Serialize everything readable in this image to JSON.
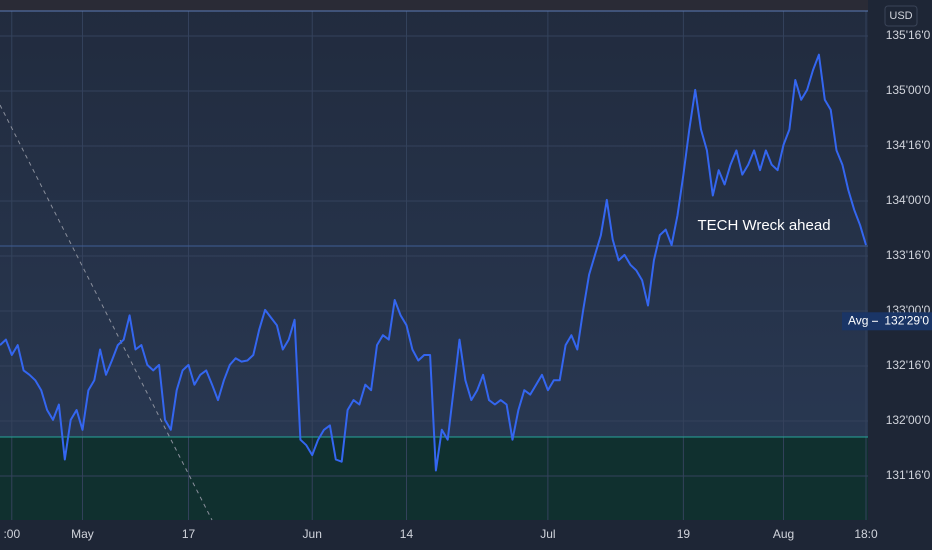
{
  "chart_data": {
    "type": "line",
    "currency": "USD",
    "annotation": "TECH Wreck ahead",
    "color": "#3466f0",
    "grid": true,
    "ylim": [
      131.1,
      135.827
    ],
    "yticks": [
      {
        "value": 131.5,
        "label": "131'16'0"
      },
      {
        "value": 132,
        "label": "132'00'0"
      },
      {
        "value": 132.5,
        "label": "132'16'0"
      },
      {
        "value": 133,
        "label": "133'00'0"
      },
      {
        "value": 133.5,
        "label": "133'16'0"
      },
      {
        "value": 134,
        "label": "134'00'0"
      },
      {
        "value": 134.5,
        "label": "134'16'0"
      },
      {
        "value": 135,
        "label": "135'00'0"
      },
      {
        "value": 135.5,
        "label": "135'16'0"
      }
    ],
    "avg_label": "Avg",
    "avg": {
      "value": 132.90625,
      "label": "132'29'0"
    },
    "categories": [
      null,
      null,
      ":00",
      null,
      null,
      null,
      null,
      null,
      null,
      null,
      null,
      null,
      null,
      null,
      "May",
      null,
      null,
      null,
      null,
      null,
      null,
      null,
      null,
      null,
      null,
      null,
      null,
      null,
      null,
      null,
      null,
      null,
      "17",
      null,
      null,
      null,
      null,
      null,
      null,
      null,
      null,
      null,
      null,
      null,
      null,
      null,
      null,
      null,
      null,
      null,
      null,
      null,
      null,
      "Jun",
      null,
      null,
      null,
      null,
      null,
      null,
      null,
      null,
      null,
      null,
      null,
      null,
      null,
      null,
      null,
      "14",
      null,
      null,
      null,
      null,
      null,
      null,
      null,
      null,
      null,
      null,
      null,
      null,
      null,
      null,
      null,
      null,
      null,
      null,
      null,
      null,
      null,
      null,
      null,
      "Jul",
      null,
      null,
      null,
      null,
      null,
      null,
      null,
      null,
      null,
      null,
      null,
      null,
      null,
      null,
      null,
      null,
      null,
      null,
      null,
      null,
      null,
      null,
      "19",
      null,
      null,
      null,
      null,
      null,
      null,
      null,
      null,
      null,
      null,
      null,
      null,
      null,
      null,
      null,
      null,
      "Aug",
      null,
      null,
      null,
      null,
      null,
      null,
      null,
      null,
      null,
      null,
      null,
      null,
      null,
      "18:0"
    ],
    "values": [
      132.69,
      132.74,
      132.6,
      132.69,
      132.46,
      132.42,
      132.37,
      132.28,
      132.1,
      132.01,
      132.15,
      131.65,
      132.01,
      132.1,
      131.92,
      132.28,
      132.37,
      132.65,
      132.42,
      132.55,
      132.69,
      132.74,
      132.96,
      132.65,
      132.69,
      132.51,
      132.46,
      132.51,
      132.01,
      131.92,
      132.28,
      132.46,
      132.51,
      132.33,
      132.42,
      132.46,
      132.33,
      132.19,
      132.37,
      132.51,
      132.57,
      132.54,
      132.55,
      132.6,
      132.83,
      133.01,
      132.94,
      132.87,
      132.65,
      132.74,
      132.92,
      131.83,
      131.78,
      131.69,
      131.83,
      131.92,
      131.96,
      131.65,
      131.63,
      132.1,
      132.19,
      132.15,
      132.33,
      132.28,
      132.69,
      132.78,
      132.74,
      133.1,
      132.96,
      132.87,
      132.65,
      132.55,
      132.6,
      132.6,
      131.55,
      131.92,
      131.83,
      132.28,
      132.74,
      132.37,
      132.19,
      132.28,
      132.42,
      132.19,
      132.15,
      132.19,
      132.15,
      131.83,
      132.1,
      132.28,
      132.24,
      132.33,
      132.42,
      132.28,
      132.37,
      132.37,
      132.69,
      132.78,
      132.65,
      133.01,
      133.33,
      133.51,
      133.69,
      134.01,
      133.65,
      133.46,
      133.51,
      133.42,
      133.37,
      133.28,
      133.05,
      133.46,
      133.69,
      133.74,
      133.6,
      133.87,
      134.24,
      134.65,
      135.01,
      134.65,
      134.46,
      134.05,
      134.28,
      134.15,
      134.33,
      134.46,
      134.24,
      134.33,
      134.46,
      134.28,
      134.46,
      134.33,
      134.28,
      134.51,
      134.65,
      135.1,
      134.92,
      135.01,
      135.19,
      135.33,
      134.92,
      134.83,
      134.46,
      134.33,
      134.1,
      133.92,
      133.78,
      133.6
    ]
  }
}
